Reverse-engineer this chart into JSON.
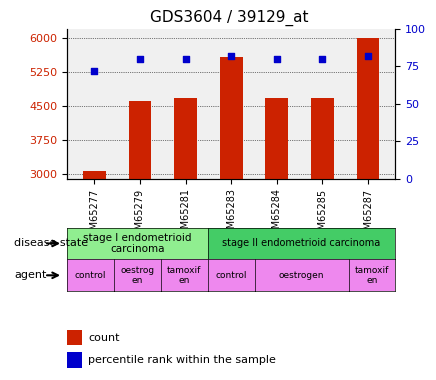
{
  "title": "GDS3604 / 39129_at",
  "samples": [
    "GSM65277",
    "GSM65279",
    "GSM65281",
    "GSM65283",
    "GSM65284",
    "GSM65285",
    "GSM65287"
  ],
  "bar_values": [
    3080,
    4620,
    4680,
    5580,
    4680,
    4680,
    6000
  ],
  "scatter_values": [
    72,
    80,
    80,
    82,
    80,
    80,
    82
  ],
  "bar_color": "#cc2200",
  "scatter_color": "#0000cc",
  "ylim_left": [
    2900,
    6200
  ],
  "ylim_right": [
    0,
    100
  ],
  "yticks_left": [
    3000,
    3750,
    4500,
    5250,
    6000
  ],
  "yticks_right": [
    0,
    25,
    50,
    75,
    100
  ],
  "disease_state_labels": [
    "stage I endometrioid\ncarcinoma",
    "stage II endometrioid carcinoma"
  ],
  "disease_state_color_1": "#90ee90",
  "disease_state_color_2": "#44cc66",
  "agent_labels": [
    "control",
    "oestrog\nen",
    "tamoxif\nen",
    "control",
    "oestrogen",
    "tamoxif\nen"
  ],
  "agent_color": "#ee88ee",
  "xlabel_color": "#cc2200",
  "ylabel_right_color": "#0000cc"
}
